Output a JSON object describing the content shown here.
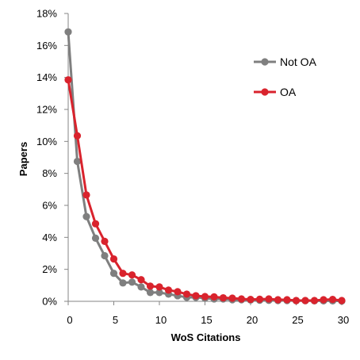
{
  "colors": {
    "not_oa": "#7f7f7f",
    "oa": "#d9232d",
    "axis": "#868686"
  },
  "chart_data": {
    "type": "line",
    "title": "",
    "xlabel": "WoS Citations",
    "ylabel": "Papers",
    "xlim": [
      0,
      30
    ],
    "ylim": [
      0,
      18
    ],
    "x_ticks": [
      0,
      5,
      10,
      15,
      20,
      25,
      30
    ],
    "x_tick_labels": [
      "0",
      "5",
      "10",
      "15",
      "20",
      "25",
      "30"
    ],
    "y_ticks": [
      0,
      2,
      4,
      6,
      8,
      10,
      12,
      14,
      16,
      18
    ],
    "y_tick_labels": [
      "0%",
      "2%",
      "4%",
      "6%",
      "8%",
      "10%",
      "12%",
      "14%",
      "16%",
      "18%"
    ],
    "grid": false,
    "legend_position": "right",
    "x": [
      0,
      1,
      2,
      3,
      4,
      5,
      6,
      7,
      8,
      9,
      10,
      11,
      12,
      13,
      14,
      15,
      16,
      17,
      18,
      19,
      20,
      21,
      22,
      23,
      24,
      25,
      26,
      27,
      28,
      29,
      30
    ],
    "series": [
      {
        "name": "Not OA",
        "color": "#7f7f7f",
        "values": [
          16.85,
          8.75,
          5.3,
          3.95,
          2.85,
          1.75,
          1.15,
          1.2,
          0.9,
          0.55,
          0.55,
          0.45,
          0.35,
          0.25,
          0.25,
          0.2,
          0.15,
          0.15,
          0.1,
          0.1,
          0.08,
          0.07,
          0.06,
          0.05,
          0.05,
          0.04,
          0.04,
          0.03,
          0.03,
          0.03,
          0.02
        ]
      },
      {
        "name": "OA",
        "color": "#d9232d",
        "values": [
          13.85,
          10.35,
          6.65,
          4.85,
          3.75,
          2.65,
          1.75,
          1.65,
          1.35,
          0.95,
          0.9,
          0.7,
          0.6,
          0.45,
          0.35,
          0.3,
          0.28,
          0.22,
          0.2,
          0.15,
          0.12,
          0.13,
          0.15,
          0.1,
          0.1,
          0.05,
          0.05,
          0.05,
          0.1,
          0.12,
          0.05
        ]
      }
    ]
  }
}
